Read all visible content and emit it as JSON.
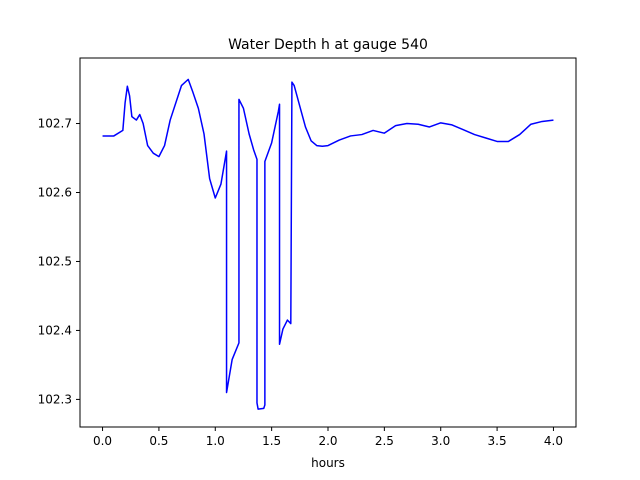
{
  "chart_data": {
    "type": "line",
    "title": "Water Depth h at gauge 540",
    "xlabel": "hours",
    "ylabel": "",
    "xlim": [
      -0.2,
      4.2
    ],
    "ylim": [
      102.26,
      102.795
    ],
    "xticks": [
      0.0,
      0.5,
      1.0,
      1.5,
      2.0,
      2.5,
      3.0,
      3.5,
      4.0
    ],
    "xtick_labels": [
      "0.0",
      "0.5",
      "1.0",
      "1.5",
      "2.0",
      "2.5",
      "3.0",
      "3.5",
      "4.0"
    ],
    "yticks": [
      102.3,
      102.4,
      102.5,
      102.6,
      102.7
    ],
    "ytick_labels": [
      "102.3",
      "102.4",
      "102.5",
      "102.6",
      "102.7"
    ],
    "grid": false,
    "series": [
      {
        "color": "#0000ff",
        "x": [
          0.0,
          0.1,
          0.18,
          0.2,
          0.22,
          0.24,
          0.26,
          0.3,
          0.33,
          0.36,
          0.4,
          0.45,
          0.5,
          0.55,
          0.6,
          0.7,
          0.76,
          0.8,
          0.85,
          0.9,
          0.95,
          1.0,
          1.05,
          1.1,
          1.1,
          1.15,
          1.21,
          1.21,
          1.25,
          1.3,
          1.34,
          1.37,
          1.37,
          1.38,
          1.43,
          1.44,
          1.44,
          1.5,
          1.56,
          1.57,
          1.57,
          1.6,
          1.64,
          1.67,
          1.68,
          1.7,
          1.75,
          1.8,
          1.85,
          1.9,
          1.95,
          2.0,
          2.1,
          2.2,
          2.3,
          2.4,
          2.5,
          2.6,
          2.7,
          2.8,
          2.9,
          3.0,
          3.1,
          3.2,
          3.3,
          3.4,
          3.5,
          3.6,
          3.7,
          3.8,
          3.9,
          4.0
        ],
        "y": [
          102.682,
          102.682,
          102.69,
          102.73,
          102.754,
          102.74,
          102.71,
          102.705,
          102.713,
          102.7,
          102.668,
          102.657,
          102.652,
          102.668,
          102.705,
          102.755,
          102.764,
          102.746,
          102.722,
          102.685,
          102.62,
          102.592,
          102.612,
          102.66,
          102.31,
          102.358,
          102.382,
          102.735,
          102.722,
          102.685,
          102.662,
          102.648,
          102.295,
          102.286,
          102.287,
          102.292,
          102.645,
          102.672,
          102.718,
          102.728,
          102.38,
          102.402,
          102.415,
          102.41,
          102.76,
          102.755,
          102.725,
          102.695,
          102.675,
          102.668,
          102.667,
          102.668,
          102.676,
          102.682,
          102.684,
          102.69,
          102.686,
          102.697,
          102.7,
          102.699,
          102.695,
          102.701,
          102.698,
          102.691,
          102.684,
          102.679,
          102.674,
          102.674,
          102.684,
          102.699,
          102.703,
          102.705
        ]
      }
    ]
  }
}
